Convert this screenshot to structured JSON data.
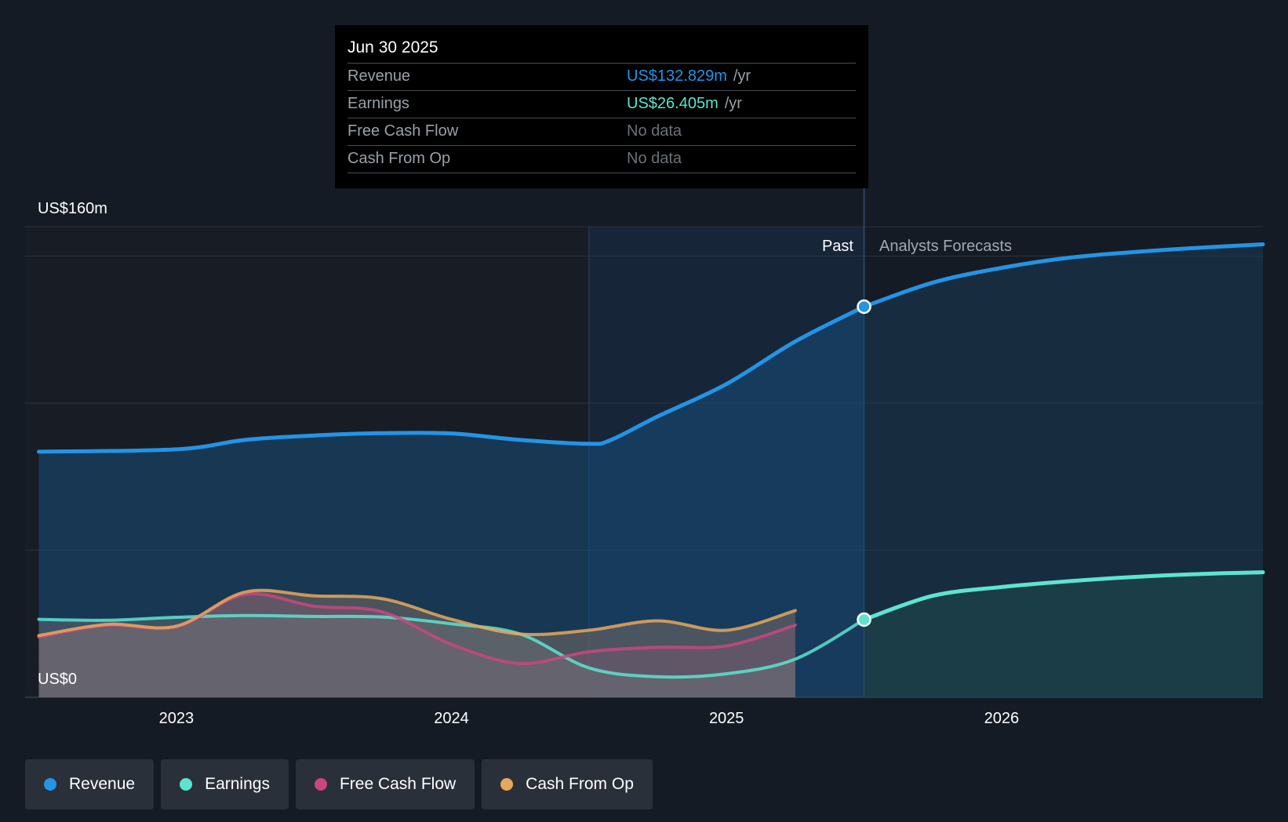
{
  "tooltip": {
    "date": "Jun 30 2025",
    "rows": [
      {
        "name": "Revenue",
        "value": "US$132.829m",
        "unit": "/yr",
        "color": "#2394e6"
      },
      {
        "name": "Earnings",
        "value": "US$26.405m",
        "unit": "/yr",
        "color": "#5de4d0"
      },
      {
        "name": "Free Cash Flow",
        "value": "No data",
        "unit": "",
        "color": "#6b7079"
      },
      {
        "name": "Cash From Op",
        "value": "No data",
        "unit": "",
        "color": "#6b7079"
      }
    ]
  },
  "labels": {
    "past": "Past",
    "forecast": "Analysts Forecasts"
  },
  "legend": [
    {
      "label": "Revenue",
      "color": "#2394e6"
    },
    {
      "label": "Earnings",
      "color": "#5de4d0"
    },
    {
      "label": "Free Cash Flow",
      "color": "#c9467f"
    },
    {
      "label": "Cash From Op",
      "color": "#e6a85c"
    }
  ],
  "chart_data": {
    "type": "line",
    "title": "",
    "xlabel": "",
    "ylabel": "",
    "y_unit": "US$m",
    "ylim": [
      0,
      160
    ],
    "y_ticks": [
      {
        "value": 0,
        "label": "US$0"
      },
      {
        "value": 160,
        "label": "US$160m"
      }
    ],
    "gridlines": [
      0,
      50,
      100,
      150,
      160
    ],
    "xlim": [
      2022.45,
      2026.95
    ],
    "x_ticks": [
      {
        "value": 2023.0,
        "label": "2023"
      },
      {
        "value": 2024.0,
        "label": "2024"
      },
      {
        "value": 2025.0,
        "label": "2025"
      },
      {
        "value": 2026.0,
        "label": "2026"
      }
    ],
    "past_end": 2025.5,
    "highlight_start": 2024.5,
    "hover_x": 2025.5,
    "series": [
      {
        "name": "Revenue",
        "color": "#2394e6",
        "kind": "past",
        "points": [
          [
            2022.5,
            83.5
          ],
          [
            2023.0,
            84.3
          ],
          [
            2023.25,
            87.5
          ],
          [
            2023.5,
            89
          ],
          [
            2023.75,
            89.8
          ],
          [
            2024.0,
            89.7
          ],
          [
            2024.25,
            87.5
          ],
          [
            2024.5,
            86.2
          ],
          [
            2024.58,
            87.5
          ],
          [
            2024.75,
            95.5
          ],
          [
            2025.0,
            106.5
          ],
          [
            2025.25,
            121
          ],
          [
            2025.5,
            132.8
          ]
        ]
      },
      {
        "name": "Revenue Forecast",
        "color": "#2394e6",
        "kind": "forecast",
        "points": [
          [
            2025.5,
            132.8
          ],
          [
            2025.75,
            141
          ],
          [
            2026.0,
            146
          ],
          [
            2026.25,
            149.5
          ],
          [
            2026.5,
            151.5
          ],
          [
            2026.75,
            153
          ],
          [
            2026.95,
            154
          ]
        ]
      },
      {
        "name": "Earnings",
        "color": "#5de4d0",
        "kind": "past",
        "points": [
          [
            2022.5,
            26.5
          ],
          [
            2022.75,
            26.2
          ],
          [
            2023.0,
            27.2
          ],
          [
            2023.25,
            27.8
          ],
          [
            2023.5,
            27.5
          ],
          [
            2023.75,
            27.3
          ],
          [
            2024.0,
            25
          ],
          [
            2024.25,
            21.5
          ],
          [
            2024.5,
            10
          ],
          [
            2024.75,
            7
          ],
          [
            2025.0,
            8
          ],
          [
            2025.25,
            13
          ],
          [
            2025.5,
            26.4
          ]
        ]
      },
      {
        "name": "Earnings Forecast",
        "color": "#5de4d0",
        "kind": "forecast",
        "points": [
          [
            2025.5,
            26.4
          ],
          [
            2025.75,
            34.5
          ],
          [
            2026.0,
            37.5
          ],
          [
            2026.25,
            39.5
          ],
          [
            2026.5,
            41
          ],
          [
            2026.75,
            42
          ],
          [
            2026.95,
            42.5
          ]
        ]
      },
      {
        "name": "Free Cash Flow",
        "color": "#c9467f",
        "kind": "past",
        "points": [
          [
            2022.5,
            20.5
          ],
          [
            2022.75,
            24.5
          ],
          [
            2023.0,
            24
          ],
          [
            2023.25,
            35
          ],
          [
            2023.5,
            31
          ],
          [
            2023.75,
            29
          ],
          [
            2024.0,
            18
          ],
          [
            2024.25,
            11.5
          ],
          [
            2024.5,
            15.5
          ],
          [
            2024.75,
            17
          ],
          [
            2025.0,
            17.5
          ],
          [
            2025.25,
            24.5
          ]
        ]
      },
      {
        "name": "Cash From Op",
        "color": "#e6a85c",
        "kind": "past",
        "points": [
          [
            2022.5,
            21
          ],
          [
            2022.75,
            24.8
          ],
          [
            2023.0,
            24.2
          ],
          [
            2023.25,
            35.8
          ],
          [
            2023.5,
            34.5
          ],
          [
            2023.75,
            33.5
          ],
          [
            2024.0,
            26.5
          ],
          [
            2024.25,
            21.5
          ],
          [
            2024.5,
            22.8
          ],
          [
            2024.75,
            26
          ],
          [
            2025.0,
            22.8
          ],
          [
            2025.25,
            29.5
          ]
        ]
      }
    ]
  }
}
